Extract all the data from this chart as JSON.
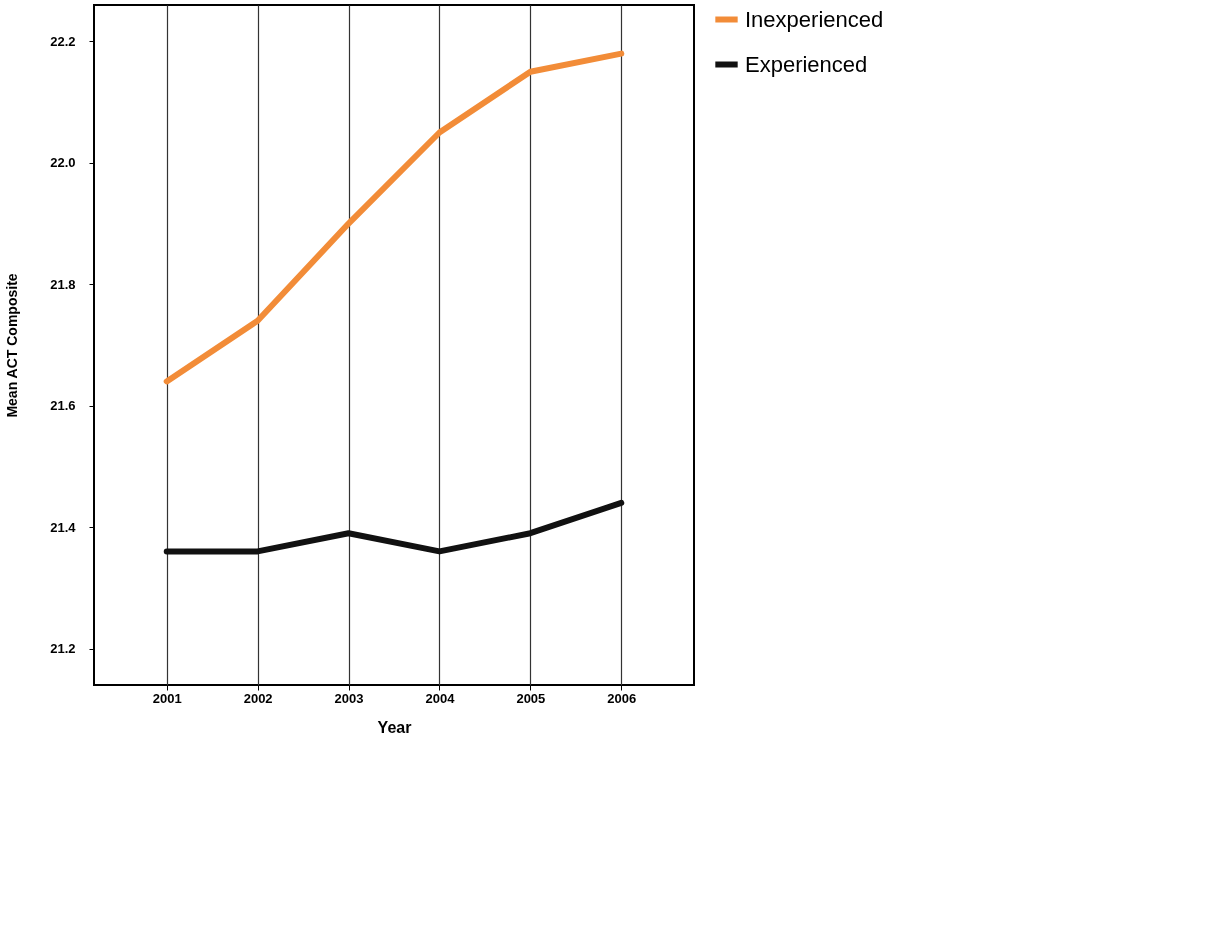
{
  "chart_data": {
    "type": "line",
    "xlabel": "Year",
    "ylabel": "Mean ACT Composite",
    "x": [
      2001,
      2002,
      2003,
      2004,
      2005,
      2006
    ],
    "series": [
      {
        "name": "Inexperienced",
        "color": "#f28c38",
        "values": [
          21.64,
          21.74,
          21.9,
          22.05,
          22.15,
          22.18
        ]
      },
      {
        "name": "Experienced",
        "color": "#111111",
        "values": [
          21.36,
          21.36,
          21.39,
          21.36,
          21.39,
          21.44
        ]
      }
    ],
    "xlim": [
      2000.2,
      2006.8
    ],
    "xticks": [
      2001,
      2002,
      2003,
      2004,
      2005,
      2006
    ],
    "ylim": [
      21.14,
      22.26
    ],
    "yticks": [
      {
        "value": 21.2,
        "label": "21.2"
      },
      {
        "value": 21.4,
        "label": "21.4"
      },
      {
        "value": 21.6,
        "label": "21.6"
      },
      {
        "value": 21.8,
        "label": "21.8"
      },
      {
        "value": 22.0,
        "label": "22.0"
      },
      {
        "value": 22.2,
        "label": "22.2"
      }
    ],
    "grid": "x",
    "legend": "right",
    "line_style": "solid"
  }
}
